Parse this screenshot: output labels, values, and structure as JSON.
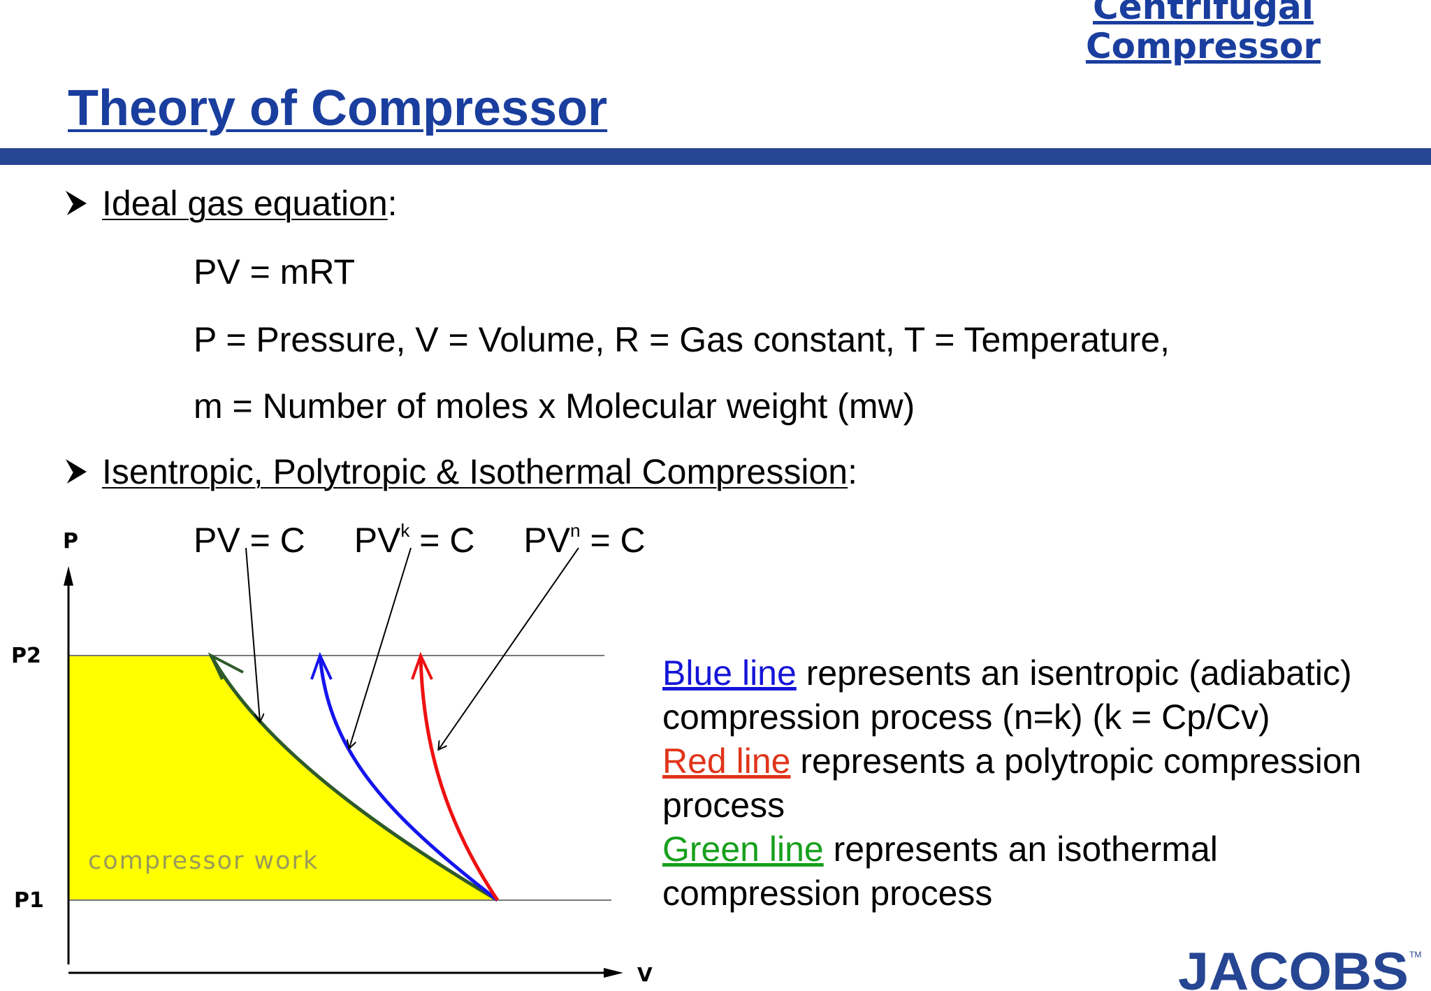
{
  "header": {
    "corner_title_line1": "Centrifugal",
    "corner_title_line2": "Compressor",
    "page_title": "Theory of Compressor"
  },
  "bullets": [
    {
      "heading": "Ideal gas equation",
      "suffix": ":",
      "lines": [
        "PV = mRT",
        "P = Pressure, V = Volume, R = Gas constant, T = Temperature,",
        "m = Number of moles x Molecular weight (mw)"
      ]
    },
    {
      "heading": "Isentropic, Polytropic & Isothermal Compression",
      "suffix": ":"
    }
  ],
  "equations": {
    "isothermal": {
      "base": "PV",
      "sup": "",
      "rest": " = C"
    },
    "isentropic": {
      "base": "PV",
      "sup": "k",
      "rest": " = C"
    },
    "polytropic": {
      "base": "PV",
      "sup": "n",
      "rest": " = C"
    }
  },
  "diagram": {
    "y_axis_label": "P",
    "x_axis_label": "V",
    "p2_label": "P2",
    "p1_label": "P1",
    "area_label": "compressor work",
    "colors": {
      "area": "#ffff00",
      "isothermal": "#2f5a2a",
      "isentropic": "#1515ee",
      "polytropic": "#ee1111",
      "axis": "#000000"
    }
  },
  "legend": {
    "blue_label": "Blue line",
    "blue_text": " represents an isentropic (adiabatic) compression process (n=k) (k = Cp/Cv)",
    "red_label": "Red line",
    "red_text": " represents a polytropic compression process",
    "green_label": "Green line",
    "green_text": " represents an isothermal compression process"
  },
  "logo": {
    "text": "JACOBS",
    "trademark": "TM",
    "color": "#264592"
  }
}
